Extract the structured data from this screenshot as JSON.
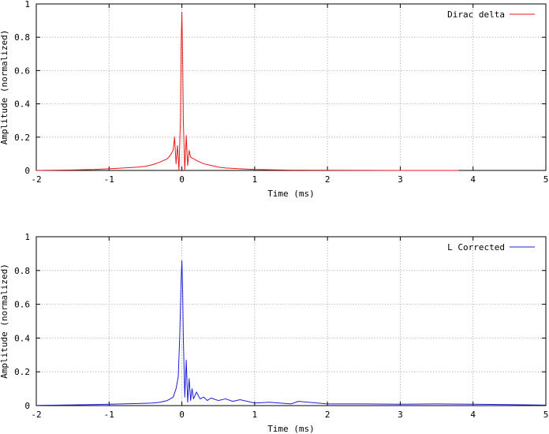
{
  "chart_data": [
    {
      "type": "line",
      "xlabel": "Time (ms)",
      "ylabel": "Amplitude (normalized)",
      "xlim": [
        -2,
        5
      ],
      "ylim": [
        0,
        1
      ],
      "xticks": [
        "-2",
        "-1",
        "0",
        "1",
        "2",
        "3",
        "4",
        "5"
      ],
      "yticks": [
        "0",
        "0.2",
        "0.4",
        "0.6",
        "0.8",
        "1"
      ],
      "grid": true,
      "legend_position": "top-right",
      "series": [
        {
          "name": "Dirac delta",
          "color": "#e41a1c",
          "x": [
            -2.0,
            -1.5,
            -1.2,
            -1.0,
            -0.8,
            -0.6,
            -0.5,
            -0.4,
            -0.3,
            -0.25,
            -0.2,
            -0.16,
            -0.12,
            -0.1,
            -0.08,
            -0.06,
            -0.04,
            -0.02,
            -0.01,
            0.0,
            0.01,
            0.02,
            0.04,
            0.06,
            0.08,
            0.1,
            0.12,
            0.16,
            0.2,
            0.25,
            0.3,
            0.4,
            0.5,
            0.6,
            0.8,
            1.0,
            1.2,
            1.5,
            2.0,
            3.0,
            3.8
          ],
          "y": [
            0.0,
            0.003,
            0.006,
            0.01,
            0.015,
            0.02,
            0.025,
            0.035,
            0.05,
            0.06,
            0.07,
            0.09,
            0.12,
            0.2,
            0.04,
            0.15,
            0.0,
            0.3,
            0.75,
            0.95,
            0.7,
            0.3,
            0.0,
            0.21,
            0.03,
            0.12,
            0.08,
            0.07,
            0.06,
            0.05,
            0.04,
            0.03,
            0.02,
            0.015,
            0.01,
            0.006,
            0.004,
            0.002,
            0.001,
            0.0,
            0.0
          ]
        }
      ]
    },
    {
      "type": "line",
      "xlabel": "Time (ms)",
      "ylabel": "Amplitude (normalized)",
      "xlim": [
        -2,
        5
      ],
      "ylim": [
        0,
        1
      ],
      "xticks": [
        "-2",
        "-1",
        "0",
        "1",
        "2",
        "3",
        "4",
        "5"
      ],
      "yticks": [
        "0",
        "0.2",
        "0.4",
        "0.6",
        "0.8",
        "1"
      ],
      "grid": true,
      "legend_position": "top-right",
      "series": [
        {
          "name": "L Corrected",
          "color": "#1f1fd6",
          "x": [
            -2.0,
            -1.5,
            -1.0,
            -0.6,
            -0.4,
            -0.3,
            -0.2,
            -0.12,
            -0.08,
            -0.05,
            -0.03,
            -0.01,
            0.0,
            0.01,
            0.02,
            0.04,
            0.06,
            0.08,
            0.1,
            0.12,
            0.14,
            0.16,
            0.2,
            0.25,
            0.3,
            0.35,
            0.4,
            0.5,
            0.6,
            0.7,
            0.8,
            1.0,
            1.2,
            1.5,
            1.6,
            2.0,
            2.5,
            3.0,
            3.5,
            4.0,
            4.5,
            5.0
          ],
          "y": [
            0.001,
            0.004,
            0.008,
            0.012,
            0.015,
            0.02,
            0.03,
            0.05,
            0.1,
            0.17,
            0.4,
            0.75,
            0.86,
            0.7,
            0.4,
            0.05,
            0.27,
            0.02,
            0.16,
            0.03,
            0.1,
            0.04,
            0.08,
            0.04,
            0.05,
            0.03,
            0.045,
            0.03,
            0.04,
            0.025,
            0.035,
            0.015,
            0.02,
            0.01,
            0.025,
            0.01,
            0.01,
            0.008,
            0.01,
            0.008,
            0.006,
            0.003
          ]
        }
      ]
    }
  ]
}
